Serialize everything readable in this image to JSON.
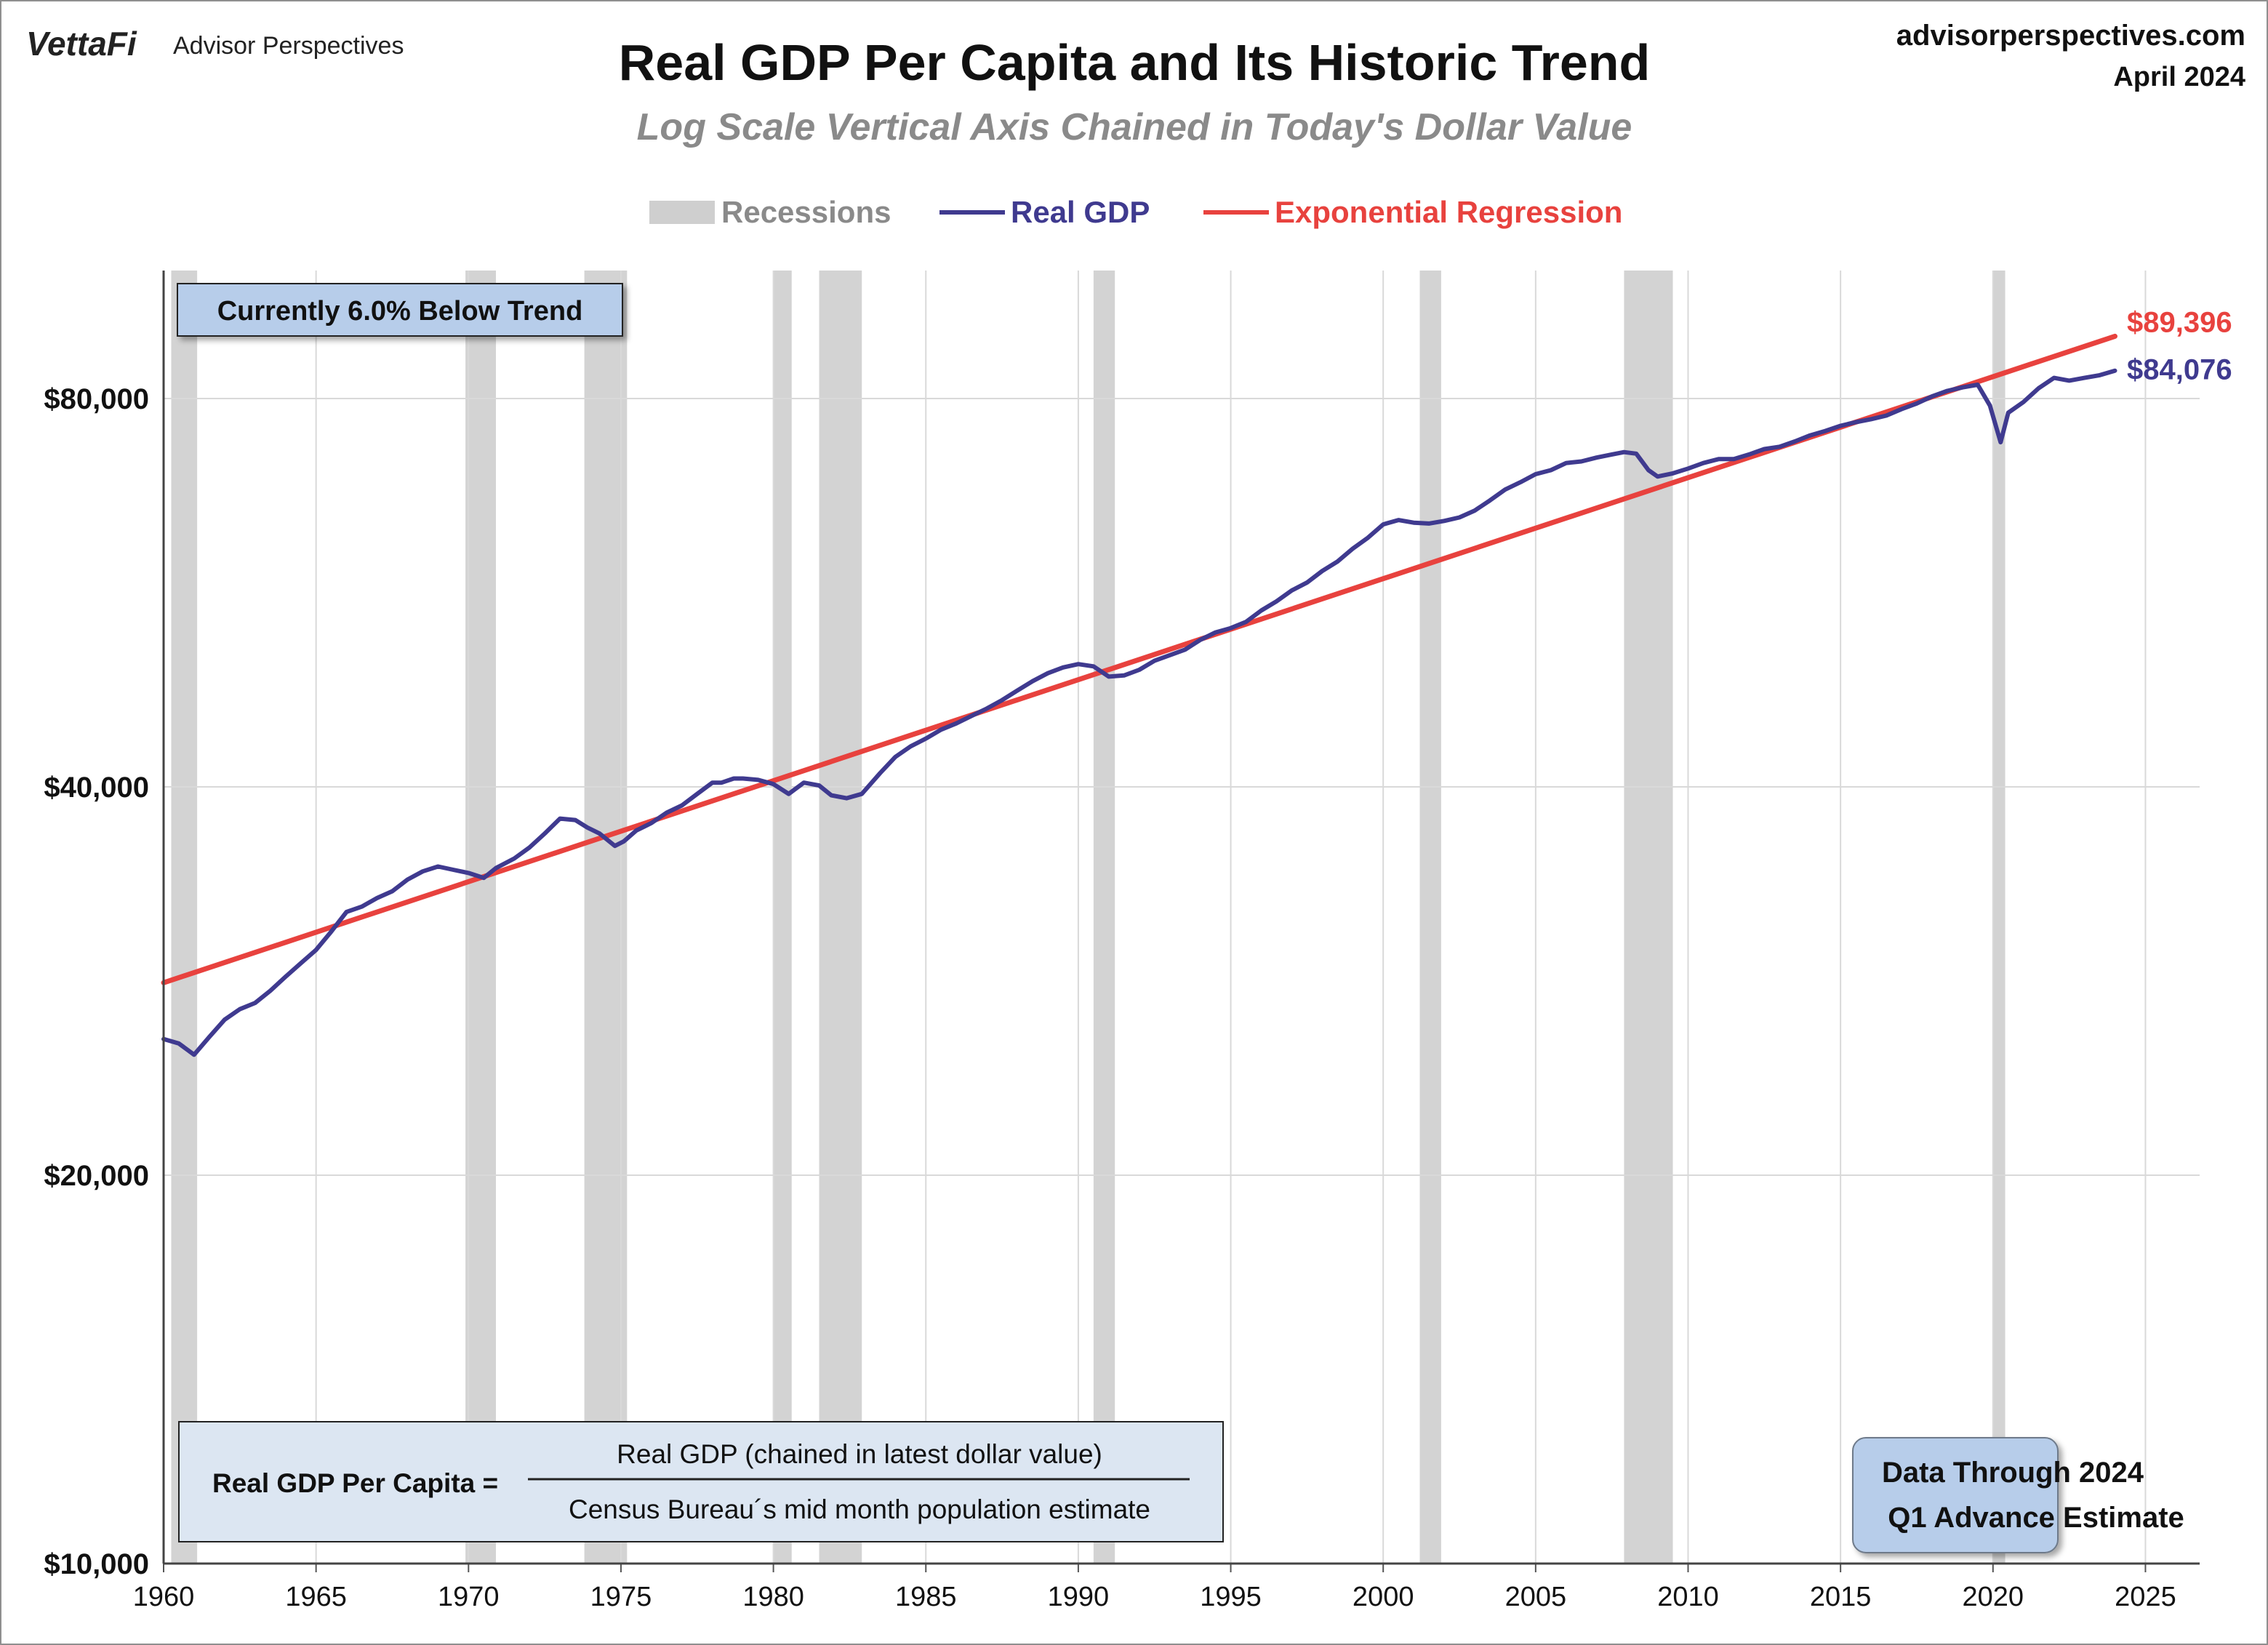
{
  "brand": {
    "vettafi": "VettaFi",
    "advisor": "Advisor Perspectives",
    "site": "advisorperspectives.com",
    "date": "April 2024"
  },
  "chart_data": {
    "type": "line",
    "title": "Real GDP Per Capita and Its Historic Trend",
    "subtitle": "Log Scale Vertical Axis Chained in Today's Dollar Value",
    "scale": "log",
    "xlim": [
      1960,
      2026
    ],
    "ylim": [
      10000,
      130000
    ],
    "x_ticks": [
      "1960",
      "1965",
      "1970",
      "1975",
      "1980",
      "1985",
      "1990",
      "1995",
      "2000",
      "2005",
      "2010",
      "2015",
      "2020",
      "2025"
    ],
    "y_ticks": [
      {
        "value": 10000,
        "label": "$10,000"
      },
      {
        "value": 20000,
        "label": "$20,000"
      },
      {
        "value": 40000,
        "label": "$40,000"
      },
      {
        "value": 80000,
        "label": "$80,000"
      }
    ],
    "legend": {
      "position": "top-center",
      "entries": [
        {
          "label": "Recessions",
          "color": "#cfcfcf"
        },
        {
          "label": "Real GDP",
          "color": "#3f3a8f"
        },
        {
          "label": "Exponential Regression",
          "color": "#e8423e"
        }
      ]
    },
    "recessions": [
      [
        1960.25,
        1961.1
      ],
      [
        1969.9,
        1970.9
      ],
      [
        1973.8,
        1975.2
      ],
      [
        1980.0,
        1980.6
      ],
      [
        1981.5,
        1982.9
      ],
      [
        1990.5,
        1991.2
      ],
      [
        2001.2,
        2001.9
      ],
      [
        2007.9,
        2009.5
      ],
      [
        2020.0,
        2020.4
      ]
    ],
    "series": [
      {
        "name": "Real GDP",
        "color": "#3f3a8f",
        "x": [
          1960.0,
          1960.5,
          1961.0,
          1961.5,
          1962.0,
          1962.5,
          1963.0,
          1963.5,
          1964.0,
          1964.5,
          1965.0,
          1965.5,
          1966.0,
          1966.5,
          1967.0,
          1967.5,
          1968.0,
          1968.5,
          1969.0,
          1969.5,
          1970.0,
          1970.5,
          1970.9,
          1971.5,
          1972.0,
          1972.5,
          1973.0,
          1973.5,
          1973.9,
          1974.3,
          1974.8,
          1975.1,
          1975.5,
          1976.0,
          1976.5,
          1977.0,
          1977.5,
          1978.0,
          1978.3,
          1978.7,
          1979.0,
          1979.5,
          1980.0,
          1980.5,
          1981.0,
          1981.5,
          1981.9,
          1982.4,
          1982.9,
          1983.5,
          1984.0,
          1984.5,
          1985.0,
          1985.5,
          1986.0,
          1986.5,
          1987.0,
          1987.5,
          1988.0,
          1988.5,
          1989.0,
          1989.5,
          1990.0,
          1990.5,
          1991.0,
          1991.5,
          1992.0,
          1992.5,
          1993.0,
          1993.5,
          1994.0,
          1994.5,
          1995.0,
          1995.5,
          1996.0,
          1996.5,
          1997.0,
          1997.5,
          1998.0,
          1998.5,
          1999.0,
          1999.5,
          2000.0,
          2000.5,
          2001.0,
          2001.5,
          2002.0,
          2002.5,
          2003.0,
          2003.5,
          2004.0,
          2004.5,
          2005.0,
          2005.5,
          2006.0,
          2006.5,
          2007.0,
          2007.5,
          2007.9,
          2008.3,
          2008.7,
          2009.0,
          2009.5,
          2010.0,
          2010.5,
          2011.0,
          2011.5,
          2012.0,
          2012.5,
          2013.0,
          2013.5,
          2014.0,
          2014.5,
          2015.0,
          2015.5,
          2016.0,
          2016.5,
          2017.0,
          2017.5,
          2018.0,
          2018.5,
          2019.0,
          2019.5,
          2019.9,
          2020.25,
          2020.5,
          2021.0,
          2021.5,
          2022.0,
          2022.5,
          2023.0,
          2023.5,
          2024.0
        ],
        "values": [
          25500,
          25300,
          24800,
          25600,
          26400,
          26900,
          27200,
          27800,
          28500,
          29200,
          29900,
          30900,
          32000,
          32300,
          32800,
          33200,
          33900,
          34400,
          34700,
          34500,
          34300,
          34000,
          34600,
          35200,
          35900,
          36800,
          37800,
          37700,
          37200,
          36800,
          36000,
          36300,
          37000,
          37500,
          38200,
          38700,
          39500,
          40300,
          40300,
          40600,
          40600,
          40500,
          40200,
          39500,
          40300,
          40100,
          39400,
          39200,
          39500,
          41000,
          42200,
          43000,
          43600,
          44300,
          44800,
          45400,
          46000,
          46700,
          47500,
          48300,
          49000,
          49500,
          49800,
          49600,
          48700,
          48800,
          49300,
          50100,
          50600,
          51100,
          52000,
          52700,
          53100,
          53700,
          54800,
          55700,
          56800,
          57600,
          58800,
          59800,
          61200,
          62400,
          63900,
          64400,
          64100,
          64000,
          64300,
          64700,
          65500,
          66700,
          68000,
          68900,
          69900,
          70400,
          71300,
          71500,
          72000,
          72400,
          72700,
          72500,
          70400,
          69600,
          70000,
          70600,
          71300,
          71800,
          71800,
          72400,
          73100,
          73400,
          74100,
          74900,
          75500,
          76200,
          76700,
          77100,
          77600,
          78500,
          79300,
          80300,
          81100,
          81600,
          82000,
          79000,
          74000,
          78000,
          79500,
          81500,
          83000,
          82600,
          83000,
          83400,
          84076
        ]
      },
      {
        "name": "Exponential Regression",
        "color": "#e8423e",
        "x": [
          1960.0,
          2024.0
        ],
        "values": [
          28200,
          89396
        ]
      }
    ],
    "end_labels": [
      {
        "text": "$89,396",
        "color": "#e8423e"
      },
      {
        "text": "$84,076",
        "color": "#3f3a8f"
      }
    ]
  },
  "annotations": {
    "trend_box": "Currently 6.0% Below Trend",
    "formula_left": "Real GDP Per Capita =",
    "formula_numerator": "Real GDP (chained in latest dollar value)",
    "formula_denominator": "Census Bureau´s mid month population estimate",
    "data_through_line1": "Data Through 2024",
    "data_through_line2": "Q1 Advance Estimate"
  }
}
